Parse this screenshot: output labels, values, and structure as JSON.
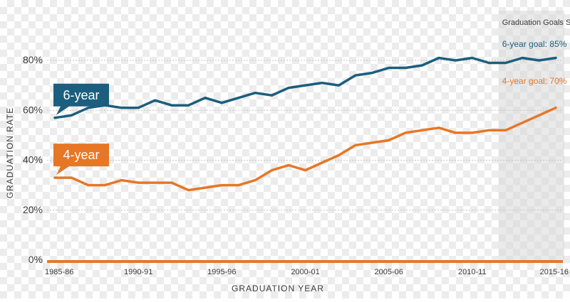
{
  "colors": {
    "six_year": "#1b5e7e",
    "four_year": "#e67727",
    "grid": "#c4c4c4",
    "text": "#3a3a3a",
    "shade": "#d9d9d9"
  },
  "chart_data": {
    "type": "line",
    "title": "",
    "xlabel": "GRADUATION YEAR",
    "ylabel": "GRADUATION RATE",
    "ylim": [
      0,
      80
    ],
    "yticks": [
      0,
      20,
      40,
      60,
      80
    ],
    "ytick_labels": [
      "0%",
      "20%",
      "40%",
      "60%",
      "80%"
    ],
    "x": [
      1985,
      1986,
      1987,
      1988,
      1989,
      1990,
      1991,
      1992,
      1993,
      1994,
      1995,
      1996,
      1997,
      1998,
      1999,
      2000,
      2001,
      2002,
      2003,
      2004,
      2005,
      2006,
      2007,
      2008,
      2009,
      2010,
      2011,
      2012,
      2013,
      2014,
      2015
    ],
    "xticks": [
      {
        "x": 1985,
        "label": "1985-86"
      },
      {
        "x": 1990,
        "label": "1990-91"
      },
      {
        "x": 1995,
        "label": "1995-96"
      },
      {
        "x": 2000,
        "label": "2000-01"
      },
      {
        "x": 2005,
        "label": "2005-06"
      },
      {
        "x": 2010,
        "label": "2010-11"
      },
      {
        "x": 2015,
        "label": "2015-16"
      }
    ],
    "series": [
      {
        "name": "6-year",
        "color": "#1b5e7e",
        "values": [
          57,
          58,
          61,
          62,
          61,
          61,
          64,
          62,
          62,
          65,
          63,
          65,
          67,
          66,
          69,
          70,
          71,
          70,
          74,
          75,
          77,
          77,
          78,
          81,
          80,
          81,
          79,
          79,
          81,
          80,
          81
        ]
      },
      {
        "name": "4-year",
        "color": "#e67727",
        "values": [
          33,
          33,
          30,
          30,
          32,
          31,
          31,
          31,
          28,
          29,
          30,
          30,
          32,
          36,
          38,
          36,
          39,
          42,
          46,
          47,
          48,
          51,
          52,
          53,
          51,
          51,
          52,
          52,
          55,
          58,
          61
        ]
      }
    ],
    "goal_section": {
      "x_start": 2012,
      "x_end": 2016,
      "title": "Graduation Goals Set",
      "six_year_goal": "6-year goal: 85%",
      "four_year_goal": "4-year goal: 70%"
    },
    "callouts": [
      {
        "label": "6-year",
        "series": "6-year"
      },
      {
        "label": "4-year",
        "series": "4-year"
      }
    ]
  }
}
